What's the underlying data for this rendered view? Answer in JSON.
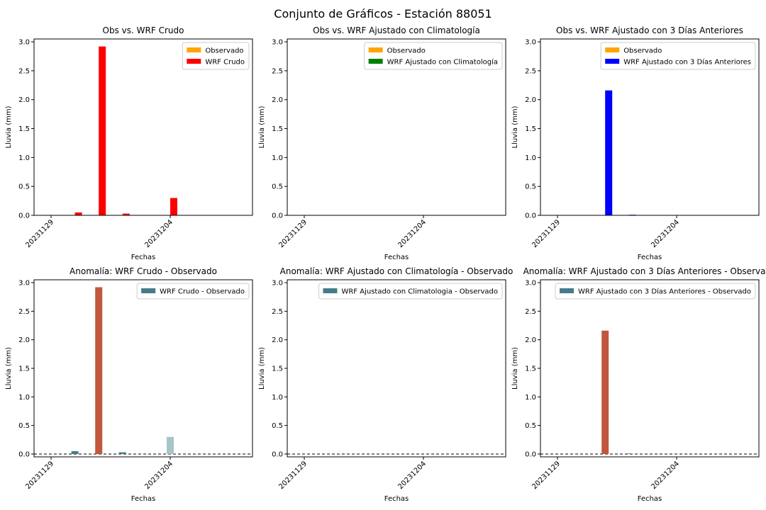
{
  "figure": {
    "title": "Conjunto de Gráficos - Estación 88051"
  },
  "colors": {
    "observado": "#ffa500",
    "wrf_crudo": "#ff0000",
    "wrf_clim": "#008000",
    "wrf_3dias": "#0000ff",
    "anomaly_legend": "#457b8a",
    "anomaly_positive_high": "#c1573e",
    "anomaly_positive_low": "#a7c4c9",
    "anomaly_small": "#457b8a"
  },
  "chart_data": [
    {
      "type": "bar",
      "title": "Obs vs. WRF Crudo",
      "xlabel": "Fechas",
      "ylabel": "Lluvia (mm)",
      "ylim": [
        0,
        3.05
      ],
      "yticks": [
        0.0,
        0.5,
        1.0,
        1.5,
        2.0,
        2.5,
        3.0
      ],
      "xticks": [
        {
          "day": 0,
          "label": "20231129"
        },
        {
          "day": 5,
          "label": "20231204"
        }
      ],
      "legend_position": "top-right",
      "series": [
        {
          "name": "Observado",
          "color_key": "observado",
          "days": [
            0,
            1,
            2,
            3,
            4,
            5,
            6,
            7,
            8
          ],
          "values": [
            0,
            0,
            0,
            0,
            0,
            0,
            0,
            0,
            0
          ]
        },
        {
          "name": "WRF Crudo",
          "color_key": "wrf_crudo",
          "days": [
            0,
            1,
            2,
            3,
            4,
            5,
            6,
            7,
            8
          ],
          "values": [
            0,
            0.05,
            2.92,
            0.03,
            0,
            0.3,
            0,
            0,
            0
          ]
        }
      ]
    },
    {
      "type": "bar",
      "title": "Obs vs. WRF Ajustado con Climatología",
      "xlabel": "Fechas",
      "ylabel": "Lluvia (mm)",
      "ylim": [
        0,
        3.05
      ],
      "yticks": [
        0.0,
        0.5,
        1.0,
        1.5,
        2.0,
        2.5,
        3.0
      ],
      "xticks": [
        {
          "day": 0,
          "label": "20231129"
        },
        {
          "day": 5,
          "label": "20231204"
        }
      ],
      "legend_position": "top-right",
      "series": [
        {
          "name": "Observado",
          "color_key": "observado",
          "days": [
            0,
            1,
            2,
            3,
            4,
            5,
            6,
            7,
            8
          ],
          "values": [
            0,
            0,
            0,
            0,
            0,
            0,
            0,
            0,
            0
          ]
        },
        {
          "name": "WRF Ajustado con Climatología",
          "color_key": "wrf_clim",
          "days": [
            0,
            1,
            2,
            3,
            4,
            5,
            6,
            7,
            8
          ],
          "values": [
            0,
            0,
            0,
            0,
            0,
            0,
            0,
            0,
            0
          ]
        }
      ]
    },
    {
      "type": "bar",
      "title": "Obs vs. WRF Ajustado con 3 Días Anteriores",
      "xlabel": "Fechas",
      "ylabel": "Lluvia (mm)",
      "ylim": [
        0,
        3.05
      ],
      "yticks": [
        0.0,
        0.5,
        1.0,
        1.5,
        2.0,
        2.5,
        3.0
      ],
      "xticks": [
        {
          "day": 0,
          "label": "20231129"
        },
        {
          "day": 5,
          "label": "20231204"
        }
      ],
      "legend_position": "top-right",
      "series": [
        {
          "name": "Observado",
          "color_key": "observado",
          "days": [
            0,
            1,
            2,
            3,
            4,
            5,
            6,
            7,
            8
          ],
          "values": [
            0,
            0,
            0,
            0,
            0,
            0,
            0,
            0,
            0
          ]
        },
        {
          "name": "WRF Ajustado con 3 Días Anteriores",
          "color_key": "wrf_3dias",
          "days": [
            0,
            1,
            2,
            3,
            4,
            5,
            6,
            7,
            8
          ],
          "values": [
            0,
            0,
            2.16,
            0.01,
            0,
            0,
            0,
            0,
            0
          ]
        }
      ]
    },
    {
      "type": "bar",
      "title": "Anomalía: WRF Crudo - Observado",
      "xlabel": "Fechas",
      "ylabel": "Lluvia (mm)",
      "ylim": [
        -0.05,
        3.05
      ],
      "yticks": [
        0.0,
        0.5,
        1.0,
        1.5,
        2.0,
        2.5,
        3.0
      ],
      "xticks": [
        {
          "day": 0,
          "label": "20231129"
        },
        {
          "day": 5,
          "label": "20231204"
        }
      ],
      "legend_position": "top-right",
      "zero_line": true,
      "series": [
        {
          "name": "WRF Crudo - Observado",
          "color_key": "anomaly_legend",
          "days": [
            1,
            2,
            3,
            5
          ],
          "values": [
            0.05,
            2.92,
            0.03,
            0.3
          ],
          "bar_color_keys": [
            "anomaly_small",
            "anomaly_positive_high",
            "anomaly_small",
            "anomaly_positive_low"
          ]
        }
      ]
    },
    {
      "type": "bar",
      "title": "Anomalía: WRF Ajustado con Climatología - Observado",
      "xlabel": "Fechas",
      "ylabel": "Lluvia (mm)",
      "ylim": [
        -0.05,
        3.05
      ],
      "yticks": [
        0.0,
        0.5,
        1.0,
        1.5,
        2.0,
        2.5,
        3.0
      ],
      "xticks": [
        {
          "day": 0,
          "label": "20231129"
        },
        {
          "day": 5,
          "label": "20231204"
        }
      ],
      "legend_position": "top-right",
      "zero_line": true,
      "series": [
        {
          "name": "WRF Ajustado con Climatologia - Observado",
          "color_key": "anomaly_legend",
          "days": [],
          "values": [],
          "bar_color_keys": []
        }
      ]
    },
    {
      "type": "bar",
      "title": "Anomalía: WRF Ajustado con 3 Días Anteriores - Observado",
      "xlabel": "Fechas",
      "ylabel": "Lluvia (mm)",
      "ylim": [
        -0.05,
        3.05
      ],
      "yticks": [
        0.0,
        0.5,
        1.0,
        1.5,
        2.0,
        2.5,
        3.0
      ],
      "xticks": [
        {
          "day": 0,
          "label": "20231129"
        },
        {
          "day": 5,
          "label": "20231204"
        }
      ],
      "legend_position": "top-right",
      "zero_line": true,
      "series": [
        {
          "name": "WRF Ajustado con 3 Días Anteriores - Observado",
          "color_key": "anomaly_legend",
          "days": [
            2,
            3
          ],
          "values": [
            2.16,
            0.01
          ],
          "bar_color_keys": [
            "anomaly_positive_high",
            "anomaly_small"
          ]
        }
      ]
    }
  ]
}
